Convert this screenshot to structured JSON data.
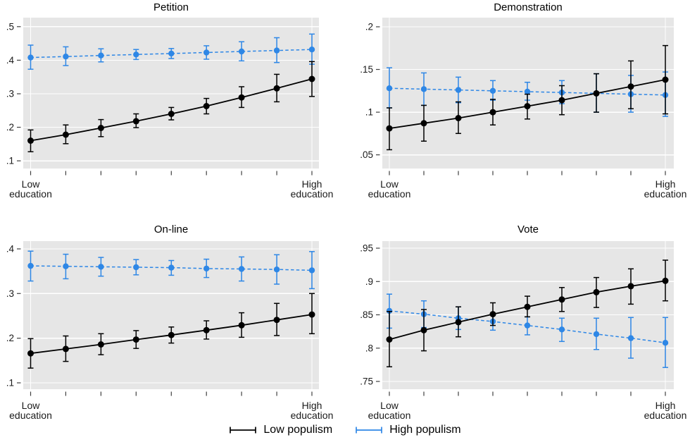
{
  "figure": {
    "background": "#ffffff",
    "plot_background": "#e6e6e6",
    "gridline_color": "#ffffff",
    "tick_color": "#404040",
    "text_color": "#1a1a1a"
  },
  "colors": {
    "low_populism": "#000000",
    "high_populism": "#2e87e6"
  },
  "legend": {
    "items": [
      {
        "label": "Low populism",
        "color": "#000000",
        "style": "solid"
      },
      {
        "label": "High populism",
        "color": "#2e87e6",
        "style": "dashed"
      }
    ]
  },
  "chart_data": [
    {
      "type": "line",
      "title": "Petition",
      "x": [
        1,
        2,
        3,
        4,
        5,
        6,
        7,
        8,
        9
      ],
      "xlabel_first": "Low education",
      "xlabel_last": "High education",
      "ytick_values": [
        0.1,
        0.2,
        0.3,
        0.4,
        0.5
      ],
      "ytick_labels": [
        ".1",
        ".2",
        ".3",
        ".4",
        ".5"
      ],
      "ylim": [
        0.077,
        0.527
      ],
      "grid": true,
      "series": [
        {
          "name": "Low populism",
          "color": "#000000",
          "line_style": "solid",
          "values": [
            0.16,
            0.178,
            0.198,
            0.218,
            0.24,
            0.263,
            0.289,
            0.316,
            0.344
          ],
          "ci_low": [
            0.127,
            0.151,
            0.172,
            0.199,
            0.222,
            0.24,
            0.259,
            0.276,
            0.292
          ],
          "ci_high": [
            0.192,
            0.207,
            0.223,
            0.24,
            0.259,
            0.286,
            0.321,
            0.358,
            0.396
          ]
        },
        {
          "name": "High populism",
          "color": "#2e87e6",
          "line_style": "dashed",
          "values": [
            0.408,
            0.411,
            0.414,
            0.417,
            0.42,
            0.423,
            0.426,
            0.429,
            0.432
          ],
          "ci_low": [
            0.373,
            0.384,
            0.395,
            0.402,
            0.405,
            0.403,
            0.398,
            0.393,
            0.388
          ],
          "ci_high": [
            0.445,
            0.44,
            0.434,
            0.432,
            0.435,
            0.443,
            0.455,
            0.467,
            0.478
          ]
        }
      ]
    },
    {
      "type": "line",
      "title": "Demonstration",
      "x": [
        1,
        2,
        3,
        4,
        5,
        6,
        7,
        8,
        9
      ],
      "xlabel_first": "Low education",
      "xlabel_last": "High education",
      "ytick_values": [
        0.05,
        0.1,
        0.15,
        0.2
      ],
      "ytick_labels": [
        ".05",
        ".1",
        ".15",
        ".2"
      ],
      "ylim": [
        0.034,
        0.2107
      ],
      "grid": true,
      "series": [
        {
          "name": "Low populism",
          "color": "#000000",
          "line_style": "solid",
          "values": [
            0.081,
            0.087,
            0.093,
            0.1,
            0.107,
            0.114,
            0.122,
            0.13,
            0.138
          ],
          "ci_low": [
            0.056,
            0.066,
            0.075,
            0.085,
            0.092,
            0.097,
            0.1,
            0.104,
            0.098
          ],
          "ci_high": [
            0.105,
            0.108,
            0.112,
            0.115,
            0.121,
            0.131,
            0.145,
            0.16,
            0.178
          ]
        },
        {
          "name": "High populism",
          "color": "#2e87e6",
          "line_style": "dashed",
          "values": [
            0.128,
            0.127,
            0.126,
            0.125,
            0.124,
            0.123,
            0.122,
            0.121,
            0.12
          ],
          "ci_low": [
            0.105,
            0.108,
            0.111,
            0.114,
            0.114,
            0.11,
            0.1,
            0.1,
            0.095
          ],
          "ci_high": [
            0.152,
            0.146,
            0.141,
            0.137,
            0.135,
            0.137,
            0.145,
            0.143,
            0.147
          ]
        }
      ]
    },
    {
      "type": "line",
      "title": "On-line",
      "x": [
        1,
        2,
        3,
        4,
        5,
        6,
        7,
        8,
        9
      ],
      "xlabel_first": "Low education",
      "xlabel_last": "High education",
      "ytick_values": [
        0.1,
        0.2,
        0.3,
        0.4
      ],
      "ytick_labels": [
        ".1",
        ".2",
        ".3",
        ".4"
      ],
      "ylim": [
        0.0858,
        0.4174
      ],
      "grid": true,
      "series": [
        {
          "name": "Low populism",
          "color": "#000000",
          "line_style": "solid",
          "values": [
            0.166,
            0.176,
            0.186,
            0.197,
            0.207,
            0.218,
            0.229,
            0.241,
            0.253
          ],
          "ci_low": [
            0.133,
            0.148,
            0.163,
            0.177,
            0.189,
            0.198,
            0.202,
            0.206,
            0.21
          ],
          "ci_high": [
            0.199,
            0.205,
            0.21,
            0.217,
            0.225,
            0.239,
            0.257,
            0.278,
            0.3
          ]
        },
        {
          "name": "High populism",
          "color": "#2e87e6",
          "line_style": "dashed",
          "values": [
            0.362,
            0.361,
            0.36,
            0.359,
            0.358,
            0.356,
            0.355,
            0.354,
            0.352
          ],
          "ci_low": [
            0.328,
            0.333,
            0.339,
            0.342,
            0.341,
            0.336,
            0.328,
            0.321,
            0.311
          ],
          "ci_high": [
            0.395,
            0.388,
            0.381,
            0.376,
            0.374,
            0.377,
            0.382,
            0.387,
            0.394
          ]
        }
      ]
    },
    {
      "type": "line",
      "title": "Vote",
      "x": [
        1,
        2,
        3,
        4,
        5,
        6,
        7,
        8,
        9
      ],
      "xlabel_first": "Low education",
      "xlabel_last": "High education",
      "ytick_values": [
        0.75,
        0.8,
        0.85,
        0.9,
        0.95
      ],
      "ytick_labels": [
        ".75",
        ".8",
        ".85",
        ".9",
        ".95"
      ],
      "ylim": [
        0.7384,
        0.9606
      ],
      "grid": true,
      "series": [
        {
          "name": "Low populism",
          "color": "#000000",
          "line_style": "solid",
          "values": [
            0.813,
            0.827,
            0.839,
            0.851,
            0.862,
            0.873,
            0.884,
            0.893,
            0.901
          ],
          "ci_low": [
            0.772,
            0.796,
            0.817,
            0.834,
            0.847,
            0.855,
            0.861,
            0.866,
            0.871
          ],
          "ci_high": [
            0.855,
            0.858,
            0.862,
            0.868,
            0.878,
            0.891,
            0.906,
            0.919,
            0.932
          ]
        },
        {
          "name": "High populism",
          "color": "#2e87e6",
          "line_style": "dashed",
          "values": [
            0.856,
            0.851,
            0.845,
            0.84,
            0.834,
            0.828,
            0.821,
            0.815,
            0.808
          ],
          "ci_low": [
            0.83,
            0.831,
            0.828,
            0.827,
            0.82,
            0.81,
            0.798,
            0.785,
            0.771
          ],
          "ci_high": [
            0.881,
            0.871,
            0.862,
            0.852,
            0.847,
            0.845,
            0.845,
            0.846,
            0.846
          ]
        }
      ]
    }
  ]
}
